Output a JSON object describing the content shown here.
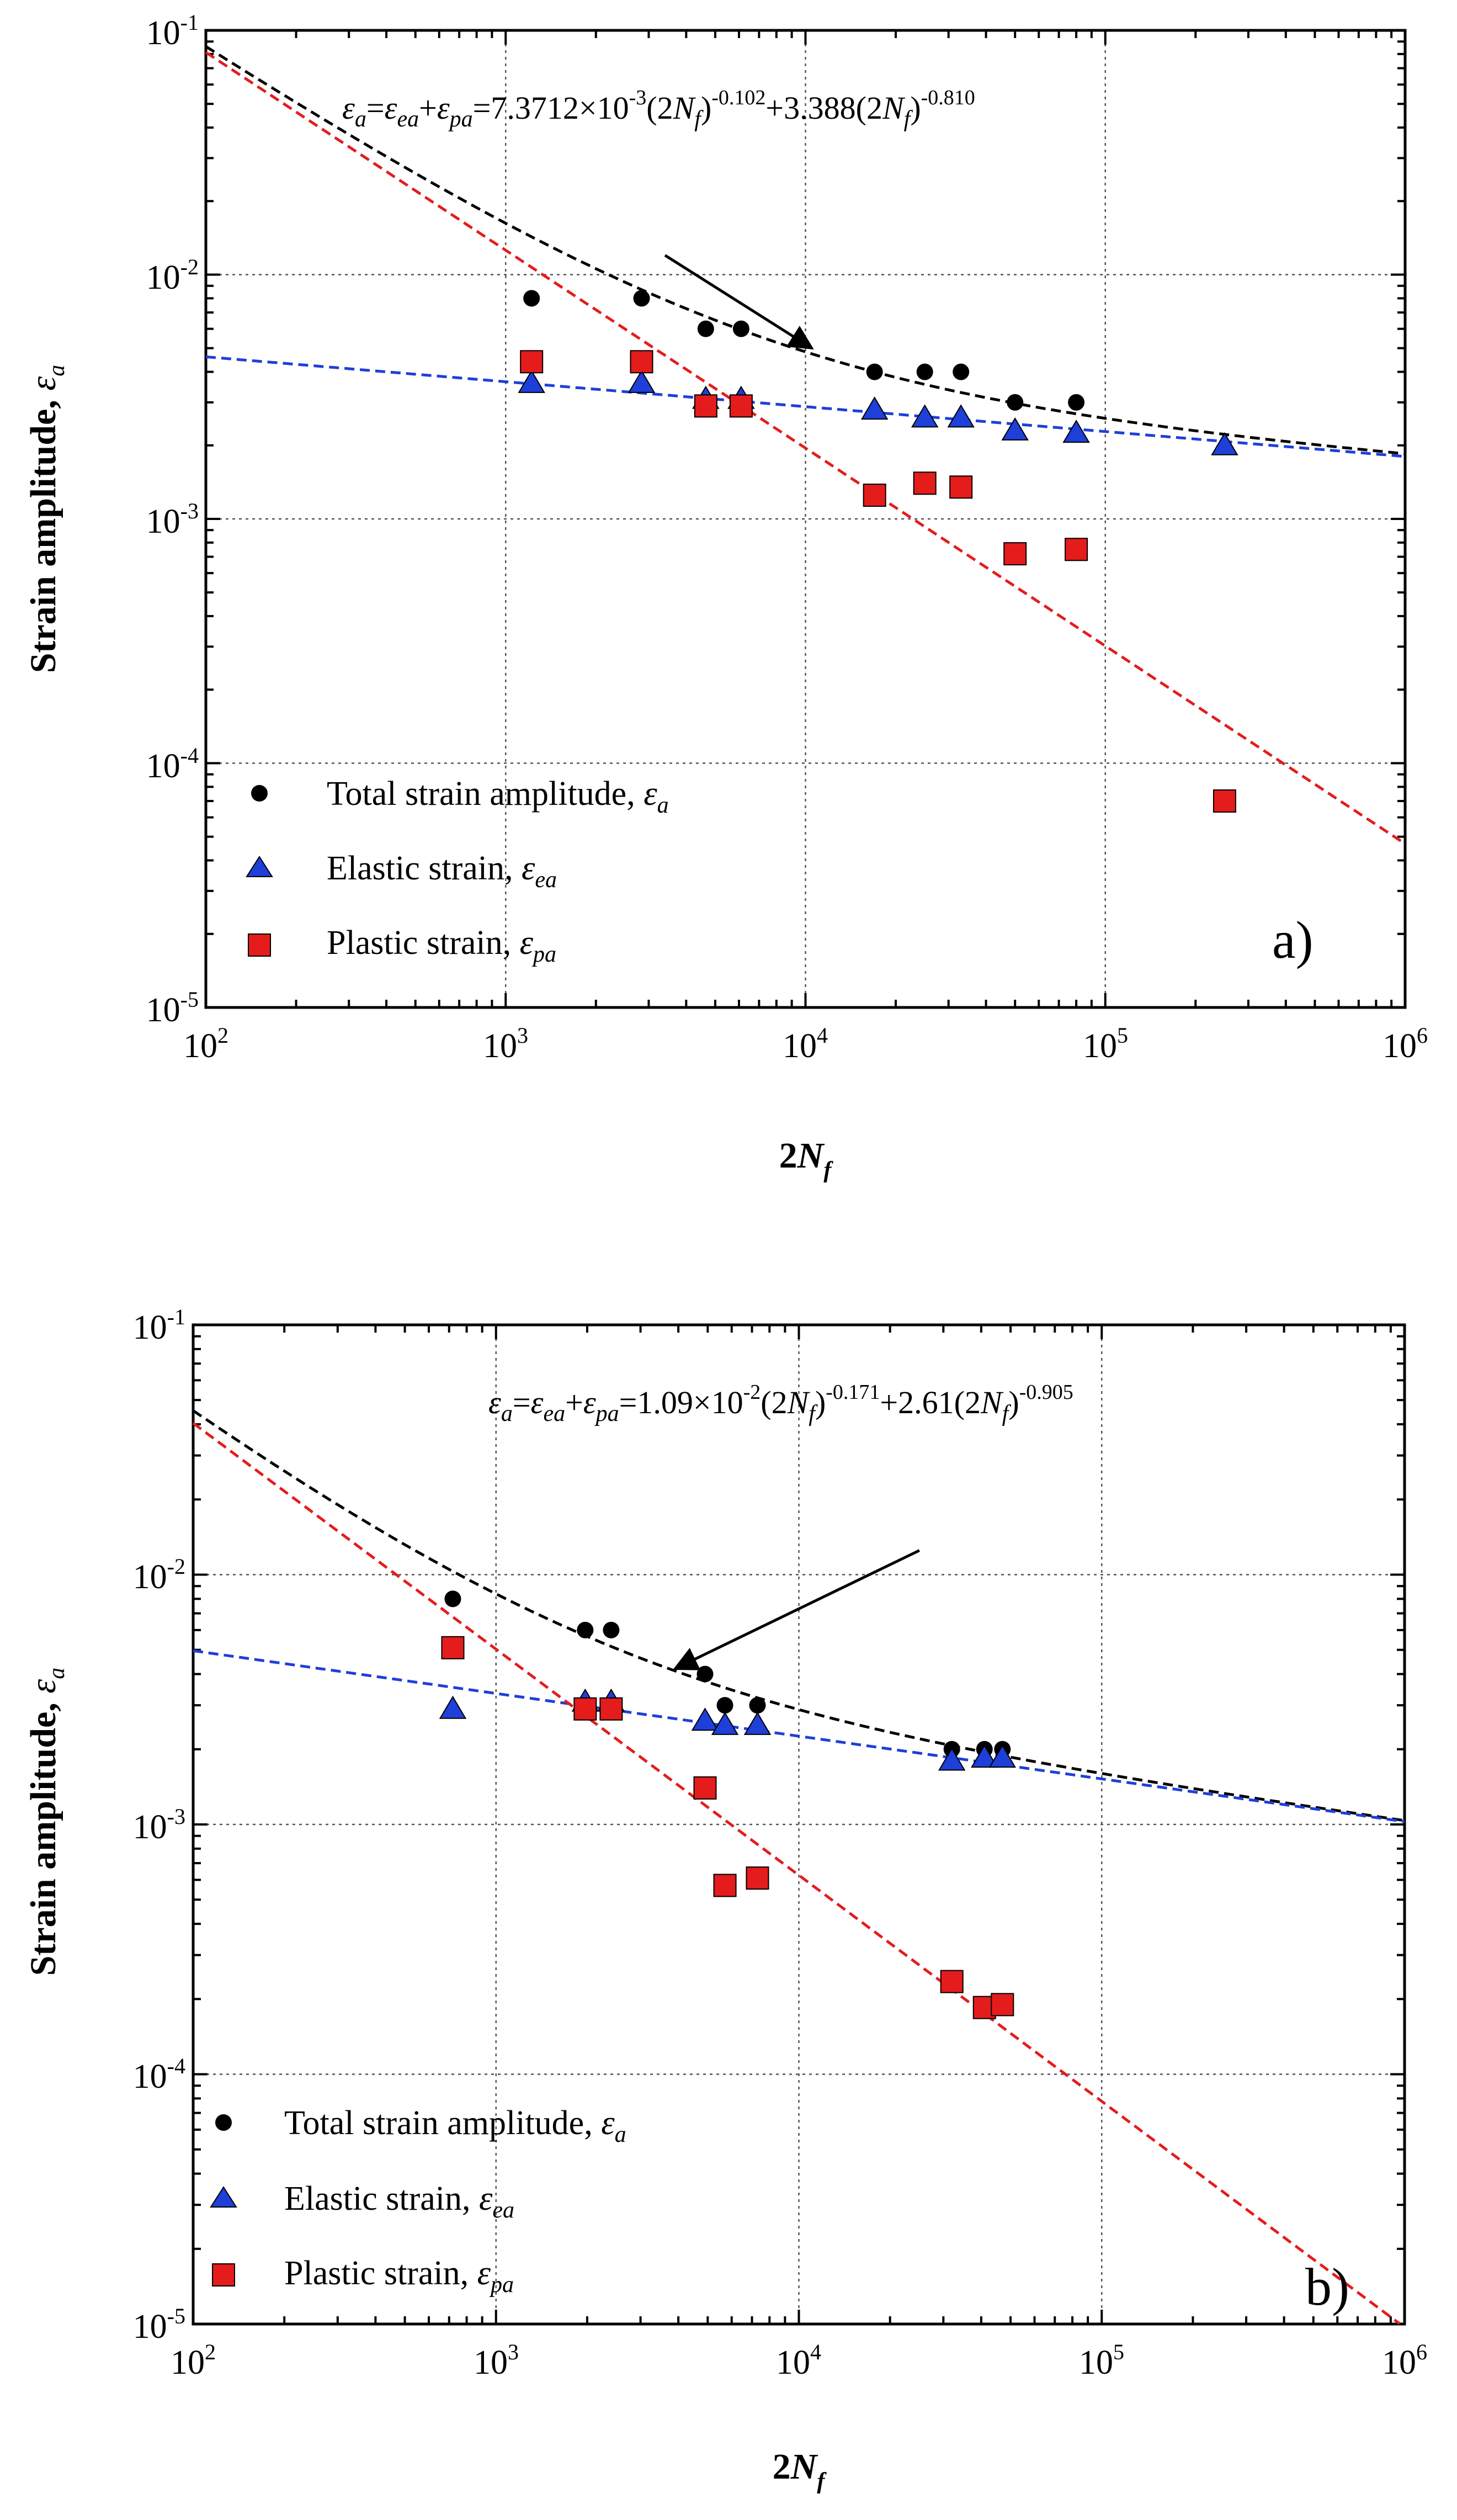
{
  "figure": {
    "panels": [
      {
        "id": "a",
        "panel_label": "a)",
        "equation": {
          "lhs": "ε",
          "lhs_sub": "a",
          "eq1": "=",
          "t1": "ε",
          "t1_sub": "ea",
          "plus1": "+",
          "t2": "ε",
          "t2_sub": "pa",
          "eq2": "=7.3712×10",
          "exp_neg": "-3",
          "part_a": "(2",
          "n": "N",
          "n_sub": "f",
          "part_b": ")",
          "exp_b": "-0.102",
          "mid": "+3.388(2",
          "n2": "N",
          "n2_sub": "f",
          "part_c": ")",
          "exp_c": "-0.810"
        },
        "legend": [
          {
            "label": "Total strain amplitude, ",
            "sym": "ε",
            "sub": "a",
            "marker": "circle",
            "color": "#000000"
          },
          {
            "label": "Elastic strain, ",
            "sym": "ε",
            "sub": "ea",
            "marker": "triangle",
            "color": "#1f3fd9"
          },
          {
            "label": "Plastic strain, ",
            "sym": "ε",
            "sub": "pa",
            "marker": "square",
            "color": "#e41c1c"
          }
        ]
      },
      {
        "id": "b",
        "panel_label": "b)",
        "equation": {
          "lhs": "ε",
          "lhs_sub": "a",
          "eq1": "=",
          "t1": "ε",
          "t1_sub": "ea",
          "plus1": "+",
          "t2": "ε",
          "t2_sub": "pa",
          "eq2": "=1.09×10",
          "exp_neg": "-2",
          "part_a": "(2",
          "n": "N",
          "n_sub": "f",
          "part_b": ")",
          "exp_b": "-0.171",
          "mid": "+2.61(2",
          "n2": "N",
          "n2_sub": "f",
          "part_c": ")",
          "exp_c": "-0.905"
        },
        "legend": [
          {
            "label": "Total strain amplitude, ",
            "sym": "ε",
            "sub": "a",
            "marker": "circle",
            "color": "#000000"
          },
          {
            "label": "Elastic strain, ",
            "sym": "ε",
            "sub": "ea",
            "marker": "triangle",
            "color": "#1f3fd9"
          },
          {
            "label": "Plastic strain, ",
            "sym": "ε",
            "sub": "pa",
            "marker": "square",
            "color": "#e41c1c"
          }
        ]
      }
    ]
  },
  "chart_data": [
    {
      "type": "scatter",
      "title": "",
      "panel": "a)",
      "xlabel": "2N_f",
      "xlabel_main": "2",
      "xlabel_var": "N",
      "xlabel_sub": "f",
      "ylabel": "Strain amplitude, ε_a",
      "ylabel_main": "Strain amplitude, ",
      "ylabel_sym": "ε",
      "ylabel_sub": "a",
      "xscale": "log",
      "yscale": "log",
      "xlim": [
        100,
        1000000
      ],
      "ylim": [
        1e-05,
        0.1
      ],
      "x_ticks": [
        {
          "base": "10",
          "exp": "2"
        },
        {
          "base": "10",
          "exp": "3"
        },
        {
          "base": "10",
          "exp": "4"
        },
        {
          "base": "10",
          "exp": "5"
        },
        {
          "base": "10",
          "exp": "6"
        }
      ],
      "y_ticks": [
        {
          "base": "10",
          "exp": "-5"
        },
        {
          "base": "10",
          "exp": "-4"
        },
        {
          "base": "10",
          "exp": "-3"
        },
        {
          "base": "10",
          "exp": "-2"
        },
        {
          "base": "10",
          "exp": "-1"
        }
      ],
      "grid": "dotted at decades",
      "legend_position": "bottom-left",
      "series": [
        {
          "name": "Total strain amplitude, ε_a",
          "marker": "circle",
          "color": "#000000",
          "x": [
            1220,
            2840,
            4650,
            6100,
            17000,
            25000,
            33000,
            50000,
            80000
          ],
          "y": [
            0.008,
            0.008,
            0.006,
            0.006,
            0.004,
            0.004,
            0.004,
            0.003,
            0.003
          ]
        },
        {
          "name": "Elastic strain, ε_ea",
          "marker": "triangle",
          "color": "#1f3fd9",
          "x": [
            1220,
            2840,
            4650,
            6100,
            17000,
            25000,
            33000,
            50000,
            80000,
            250000
          ],
          "y": [
            0.0036,
            0.0036,
            0.0031,
            0.0031,
            0.0028,
            0.0026,
            0.0026,
            0.0023,
            0.00225,
            0.002
          ]
        },
        {
          "name": "Plastic strain, ε_pa",
          "marker": "square",
          "color": "#e41c1c",
          "x": [
            1220,
            2840,
            4650,
            6100,
            17000,
            25000,
            33000,
            50000,
            80000,
            250000
          ],
          "y": [
            0.0044,
            0.0044,
            0.0029,
            0.0029,
            0.00125,
            0.0014,
            0.00135,
            0.00072,
            0.00075,
            7e-05
          ]
        }
      ],
      "fit_lines": [
        {
          "name": "total fit",
          "color": "#000000",
          "style": "dashed",
          "kind": "sum",
          "A": 0.0073712,
          "b": -0.102,
          "B": 3.388,
          "c": -0.81
        },
        {
          "name": "elastic fit",
          "color": "#1f3fd9",
          "style": "dashed",
          "kind": "power",
          "A": 0.0073712,
          "b": -0.102
        },
        {
          "name": "plastic fit",
          "color": "#e41c1c",
          "style": "dashed",
          "kind": "power",
          "A": 3.388,
          "b": -0.81
        }
      ],
      "arrow": {
        "from": [
          3400,
          0.012
        ],
        "to": [
          10500,
          0.005
        ]
      }
    },
    {
      "type": "scatter",
      "title": "",
      "panel": "b)",
      "xlabel": "2N_f",
      "xlabel_main": "2",
      "xlabel_var": "N",
      "xlabel_sub": "f",
      "ylabel": "Strain amplitude, ε_a",
      "ylabel_main": "Strain amplitude, ",
      "ylabel_sym": "ε",
      "ylabel_sub": "a",
      "xscale": "log",
      "yscale": "log",
      "xlim": [
        100,
        1000000
      ],
      "ylim": [
        1e-05,
        0.1
      ],
      "x_ticks": [
        {
          "base": "10",
          "exp": "2"
        },
        {
          "base": "10",
          "exp": "3"
        },
        {
          "base": "10",
          "exp": "4"
        },
        {
          "base": "10",
          "exp": "5"
        },
        {
          "base": "10",
          "exp": "6"
        }
      ],
      "y_ticks": [
        {
          "base": "10",
          "exp": "-5"
        },
        {
          "base": "10",
          "exp": "-4"
        },
        {
          "base": "10",
          "exp": "-3"
        },
        {
          "base": "10",
          "exp": "-2"
        },
        {
          "base": "10",
          "exp": "-1"
        }
      ],
      "grid": "dotted at decades",
      "legend_position": "bottom-left",
      "series": [
        {
          "name": "Total strain amplitude, ε_a",
          "marker": "circle",
          "color": "#000000",
          "x": [
            720,
            1970,
            2400,
            4900,
            5700,
            7300,
            32000,
            41000,
            47000
          ],
          "y": [
            0.008,
            0.006,
            0.006,
            0.004,
            0.003,
            0.003,
            0.002,
            0.002,
            0.002
          ]
        },
        {
          "name": "Elastic strain, ε_ea",
          "marker": "triangle",
          "color": "#1f3fd9",
          "x": [
            720,
            1970,
            2400,
            4900,
            5700,
            7300,
            32000,
            41000,
            47000
          ],
          "y": [
            0.0029,
            0.0031,
            0.0031,
            0.0026,
            0.0025,
            0.0025,
            0.0018,
            0.00185,
            0.00185
          ]
        },
        {
          "name": "Plastic strain, ε_pa",
          "marker": "square",
          "color": "#e41c1c",
          "x": [
            720,
            1970,
            2400,
            4900,
            5700,
            7300,
            32000,
            41000,
            47000
          ],
          "y": [
            0.0051,
            0.0029,
            0.0029,
            0.0014,
            0.00057,
            0.00061,
            0.000235,
            0.000185,
            0.00019
          ]
        }
      ],
      "fit_lines": [
        {
          "name": "total fit",
          "color": "#000000",
          "style": "dashed",
          "kind": "sum",
          "A": 0.0109,
          "b": -0.171,
          "B": 2.61,
          "c": -0.905
        },
        {
          "name": "elastic fit",
          "color": "#1f3fd9",
          "style": "dashed",
          "kind": "power",
          "A": 0.0109,
          "b": -0.171
        },
        {
          "name": "plastic fit",
          "color": "#e41c1c",
          "style": "dashed",
          "kind": "power",
          "A": 2.61,
          "b": -0.905
        }
      ],
      "arrow": {
        "from": [
          25000,
          0.0125
        ],
        "to": [
          3900,
          0.0042
        ]
      }
    }
  ]
}
